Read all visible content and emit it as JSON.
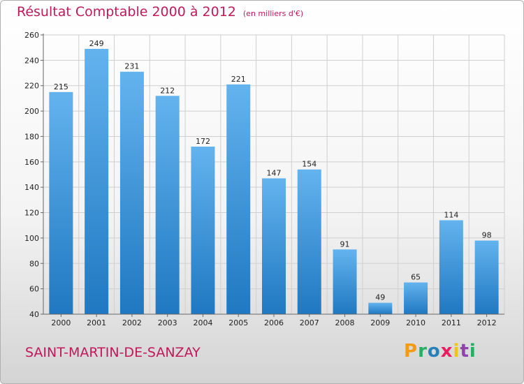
{
  "header": {
    "title": "Résultat Comptable 2000 à 2012",
    "subtitle": "(en milliers d'€)"
  },
  "footer": {
    "commune": "SAINT-MARTIN-DE-SANZAY",
    "logo": [
      {
        "ch": "P",
        "color": "#f39c12"
      },
      {
        "ch": "r",
        "color": "#27ae60"
      },
      {
        "ch": "o",
        "color": "#2980b9"
      },
      {
        "ch": "x",
        "color": "#e91e63"
      },
      {
        "ch": "i",
        "color": "#f1c40f"
      },
      {
        "ch": "t",
        "color": "#8e44ad"
      },
      {
        "ch": "i",
        "color": "#27ae60"
      }
    ]
  },
  "chart_data": {
    "type": "bar",
    "title": "Résultat Comptable 2000 à 2012",
    "subtitle": "(en milliers d'€)",
    "categories": [
      "2000",
      "2001",
      "2002",
      "2003",
      "2004",
      "2005",
      "2006",
      "2007",
      "2008",
      "2009",
      "2010",
      "2011",
      "2012"
    ],
    "values": [
      215,
      249,
      231,
      212,
      172,
      221,
      147,
      154,
      91,
      49,
      65,
      114,
      98
    ],
    "ylim": [
      40,
      260
    ],
    "yticks": [
      40,
      60,
      80,
      100,
      120,
      140,
      160,
      180,
      200,
      220,
      240,
      260
    ],
    "grid": true,
    "colors": {
      "bar_light": "#63b3ee",
      "bar_dark": "#1f78c1",
      "grid": "#cfcfcf"
    }
  }
}
